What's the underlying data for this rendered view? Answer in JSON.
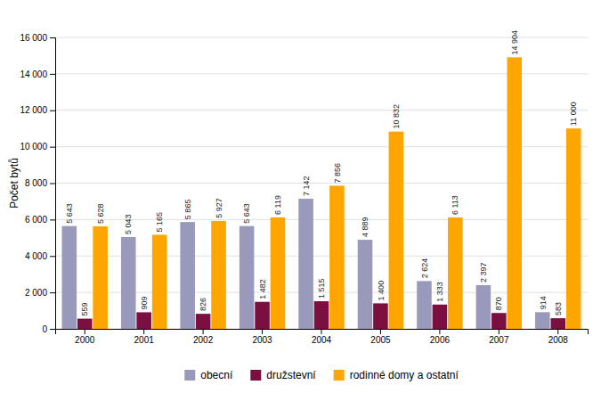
{
  "chart_data": {
    "type": "bar",
    "categories": [
      "2000",
      "2001",
      "2002",
      "2003",
      "2004",
      "2005",
      "2006",
      "2007",
      "2008"
    ],
    "series": [
      {
        "name": "obecní",
        "color": "#9999bb",
        "values": [
          5643,
          5043,
          5865,
          5643,
          7142,
          4889,
          2624,
          2397,
          914
        ],
        "value_labels": [
          "5 643",
          "5 043",
          "5 865",
          "5 643",
          "7 142",
          "4 889",
          "2 624",
          "2 397",
          "914"
        ]
      },
      {
        "name": "družstevní",
        "color": "#7b1040",
        "values": [
          559,
          909,
          826,
          1482,
          1515,
          1400,
          1333,
          870,
          583
        ],
        "value_labels": [
          "559",
          "909",
          "826",
          "1 482",
          "1 515",
          "1 400",
          "1 333",
          "870",
          "583"
        ]
      },
      {
        "name": "rodinné domy a ostatní",
        "color": "#ffa500",
        "values": [
          5628,
          5165,
          5927,
          6119,
          7856,
          10832,
          6113,
          14904,
          11000
        ],
        "value_labels": [
          "5 628",
          "5 165",
          "5 927",
          "6 119",
          "7 856",
          "10 832",
          "6 113",
          "14 904",
          "11 000"
        ]
      }
    ],
    "ylabel": "Počet bytů",
    "ylim": [
      0,
      16000
    ],
    "yticks": [
      0,
      {
        "value": 2000,
        "label": "2 000"
      },
      {
        "value": 4000,
        "label": "4 000"
      },
      {
        "value": 6000,
        "label": "6 000"
      },
      {
        "value": 8000,
        "label": "8 000"
      },
      {
        "value": 10000,
        "label": "10 000"
      },
      {
        "value": 12000,
        "label": "12 000"
      },
      {
        "value": 14000,
        "label": "14 000"
      },
      {
        "value": 16000,
        "label": "16 000"
      }
    ],
    "grid": true,
    "legend": "bottom",
    "data_labels": true
  }
}
